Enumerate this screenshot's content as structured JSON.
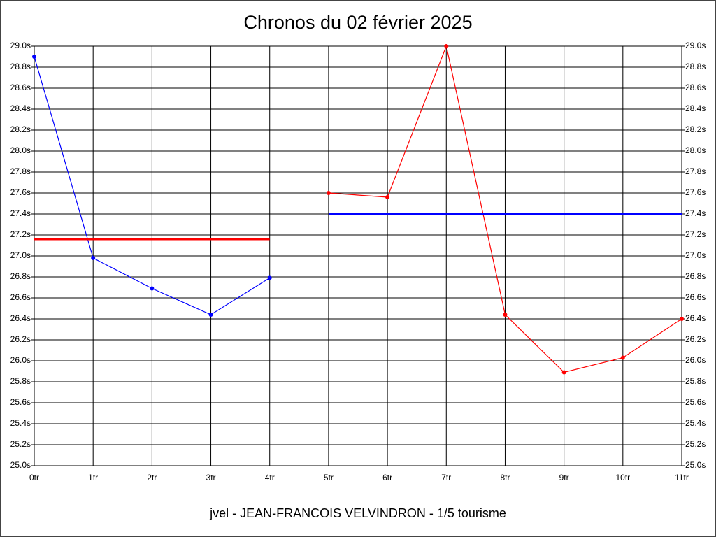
{
  "chart_data": {
    "type": "line",
    "title": "Chronos du 02 février 2025",
    "footer": "jvel - JEAN-FRANCOIS VELVINDRON - 1/5 tourisme",
    "categories": [
      "0tr",
      "1tr",
      "2tr",
      "3tr",
      "4tr",
      "5tr",
      "6tr",
      "7tr",
      "8tr",
      "9tr",
      "10tr",
      "11tr"
    ],
    "series": [
      {
        "color": "#0000ff",
        "markers": true,
        "line_width": 1.2,
        "values": [
          28.9,
          26.98,
          26.69,
          26.44,
          26.79,
          null,
          null,
          null,
          null,
          null,
          null,
          null
        ]
      },
      {
        "color": "#ff0000",
        "markers": true,
        "line_width": 1.2,
        "values": [
          null,
          null,
          null,
          null,
          null,
          27.6,
          27.56,
          29.0,
          26.44,
          25.89,
          26.03,
          26.4
        ]
      },
      {
        "color": "#ff0000",
        "markers": false,
        "line_width": 3,
        "values": [
          27.16,
          27.16,
          27.16,
          27.16,
          27.16,
          null,
          null,
          null,
          null,
          null,
          null,
          null
        ]
      },
      {
        "color": "#0000ff",
        "markers": false,
        "line_width": 3,
        "values": [
          null,
          null,
          null,
          null,
          null,
          27.4,
          27.4,
          27.4,
          27.4,
          27.4,
          27.4,
          27.4
        ]
      }
    ],
    "ylim": [
      25.0,
      29.0
    ],
    "yticks": [
      {
        "value": 25.0,
        "label": "25.0s"
      },
      {
        "value": 25.2,
        "label": "25.2s"
      },
      {
        "value": 25.4,
        "label": "25.4s"
      },
      {
        "value": 25.6,
        "label": "25.6s"
      },
      {
        "value": 25.8,
        "label": "25.8s"
      },
      {
        "value": 26.0,
        "label": "26.0s"
      },
      {
        "value": 26.2,
        "label": "26.2s"
      },
      {
        "value": 26.4,
        "label": "26.4s"
      },
      {
        "value": 26.6,
        "label": "26.6s"
      },
      {
        "value": 26.8,
        "label": "26.8s"
      },
      {
        "value": 27.0,
        "label": "27.0s"
      },
      {
        "value": 27.2,
        "label": "27.2s"
      },
      {
        "value": 27.4,
        "label": "27.4s"
      },
      {
        "value": 27.6,
        "label": "27.6s"
      },
      {
        "value": 27.8,
        "label": "27.8s"
      },
      {
        "value": 28.0,
        "label": "28.0s"
      },
      {
        "value": 28.2,
        "label": "28.2s"
      },
      {
        "value": 28.4,
        "label": "28.4s"
      },
      {
        "value": 28.6,
        "label": "28.6s"
      },
      {
        "value": 28.8,
        "label": "28.8s"
      },
      {
        "value": 29.0,
        "label": "29.0s"
      }
    ],
    "grid": true
  }
}
